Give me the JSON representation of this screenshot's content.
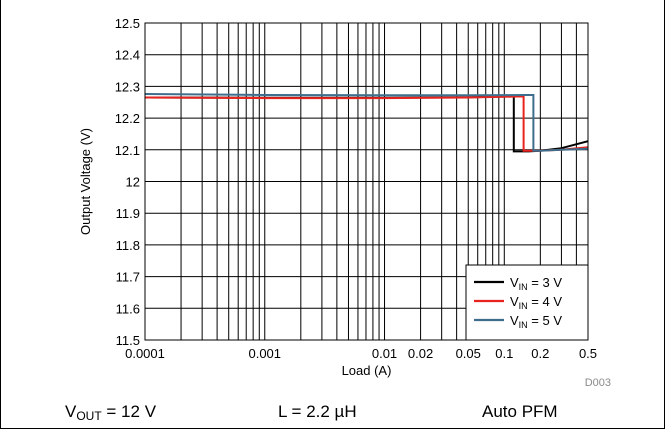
{
  "chart_data": {
    "type": "line",
    "xlabel": "Load (A)",
    "ylabel": "Output Voltage (V)",
    "x_scale": "log",
    "xlim": [
      0.0001,
      0.5
    ],
    "ylim": [
      11.5,
      12.5
    ],
    "x_ticks": [
      0.0001,
      0.001,
      0.01,
      0.02,
      0.05,
      0.1,
      0.2,
      0.5
    ],
    "x_tick_labels": [
      "0.0001",
      "0.001",
      "0.01",
      "0.02",
      "0.05",
      "0.1",
      "0.2",
      "0.5"
    ],
    "y_ticks": [
      11.5,
      11.6,
      11.7,
      11.8,
      11.9,
      12,
      12.1,
      12.2,
      12.3,
      12.4,
      12.5
    ],
    "y_tick_labels": [
      "11.5",
      "11.6",
      "11.7",
      "11.8",
      "11.9",
      "12",
      "12.1",
      "12.2",
      "12.3",
      "12.4",
      "12.5"
    ],
    "grid": true,
    "legend_position": "bottom-right",
    "series": [
      {
        "name": "V_IN = 3 V",
        "name_main": "V",
        "name_sub": "IN",
        "name_rest": " = 3 V",
        "color": "#000000",
        "x": [
          0.0001,
          0.001,
          0.01,
          0.05,
          0.11,
          0.12,
          0.12,
          0.16,
          0.2,
          0.3,
          0.5
        ],
        "y": [
          12.265,
          12.264,
          12.264,
          12.266,
          12.268,
          12.268,
          12.095,
          12.095,
          12.097,
          12.105,
          12.127
        ]
      },
      {
        "name": "V_IN = 4 V",
        "name_main": "V",
        "name_sub": "IN",
        "name_rest": " = 4 V",
        "color": "#e8231f",
        "x": [
          0.0001,
          0.001,
          0.01,
          0.05,
          0.13,
          0.145,
          0.145,
          0.19,
          0.3,
          0.5
        ],
        "y": [
          12.265,
          12.263,
          12.263,
          12.265,
          12.268,
          12.268,
          12.097,
          12.097,
          12.1,
          12.108
        ]
      },
      {
        "name": "V_IN = 5 V",
        "name_main": "V",
        "name_sub": "IN",
        "name_rest": " = 5 V",
        "color": "#3e6e8c",
        "x": [
          0.0001,
          0.001,
          0.01,
          0.05,
          0.15,
          0.175,
          0.175,
          0.2,
          0.3,
          0.5
        ],
        "y": [
          12.276,
          12.273,
          12.272,
          12.272,
          12.273,
          12.273,
          12.097,
          12.097,
          12.1,
          12.103
        ]
      }
    ]
  },
  "doc_code": "D003",
  "caption": {
    "vout_main": "V",
    "vout_sub": "OUT",
    "vout_rest": " = 12 V",
    "inductor": "L = 2.2 µH",
    "mode": "Auto PFM"
  }
}
